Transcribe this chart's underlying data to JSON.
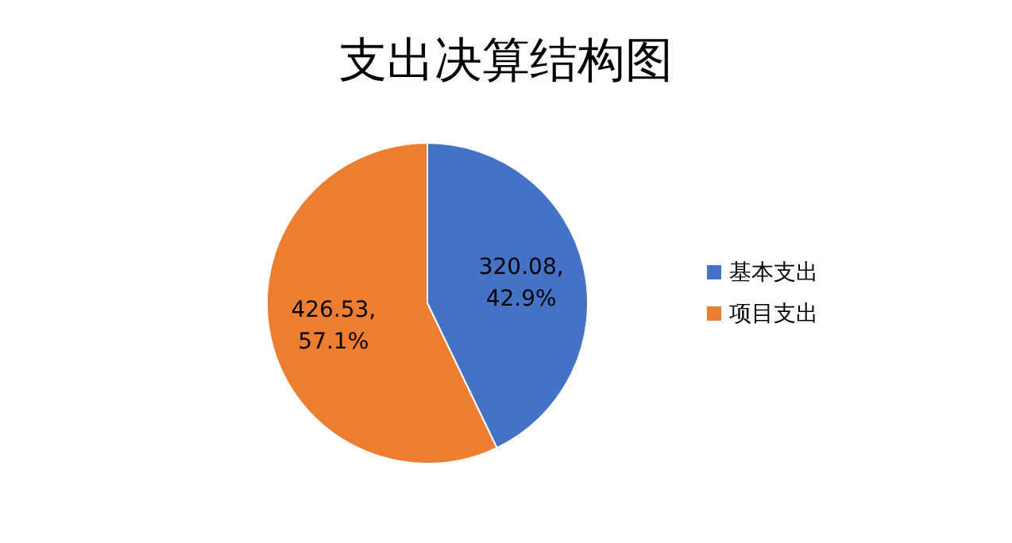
{
  "chart_data": {
    "type": "pie",
    "title": "支出决算结构图",
    "categories": [
      "基本支出",
      "项目支出"
    ],
    "values": [
      320.08,
      426.53
    ],
    "colors": [
      "#4472c4",
      "#ed7d31"
    ],
    "value_labels": [
      "320.08,\n42.9%",
      "426.53,\n57.1%"
    ],
    "legend": "right"
  }
}
